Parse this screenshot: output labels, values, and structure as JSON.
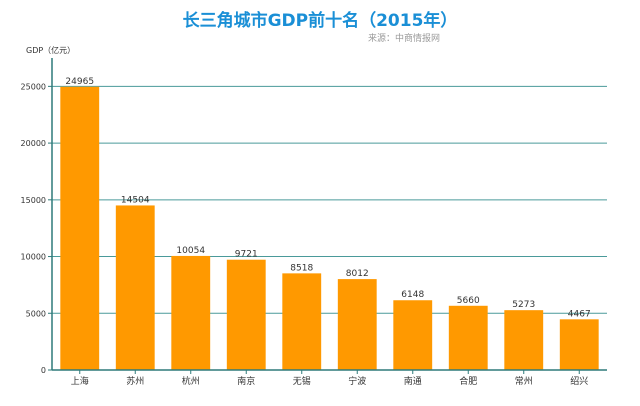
{
  "chart_data": {
    "type": "bar",
    "title": "长三角城市GDP前十名（2015年）",
    "source": "来源：中商情报网",
    "ylabel": "GDP（亿元）",
    "xlabel": "",
    "categories": [
      "上海",
      "苏州",
      "杭州",
      "南京",
      "无锡",
      "宁波",
      "南通",
      "合肥",
      "常州",
      "绍兴"
    ],
    "values": [
      24965,
      14504,
      10054,
      9721,
      8518,
      8012,
      6148,
      5660,
      5273,
      4467
    ],
    "ylim": [
      0,
      27500
    ],
    "yticks": [
      0,
      5000,
      10000,
      15000,
      20000,
      25000
    ],
    "grid": true,
    "colors": {
      "bar": "#ff9900",
      "title": "#1a8fd6",
      "axis": "#2f7a7a",
      "grid": "#4a9a9a"
    }
  }
}
